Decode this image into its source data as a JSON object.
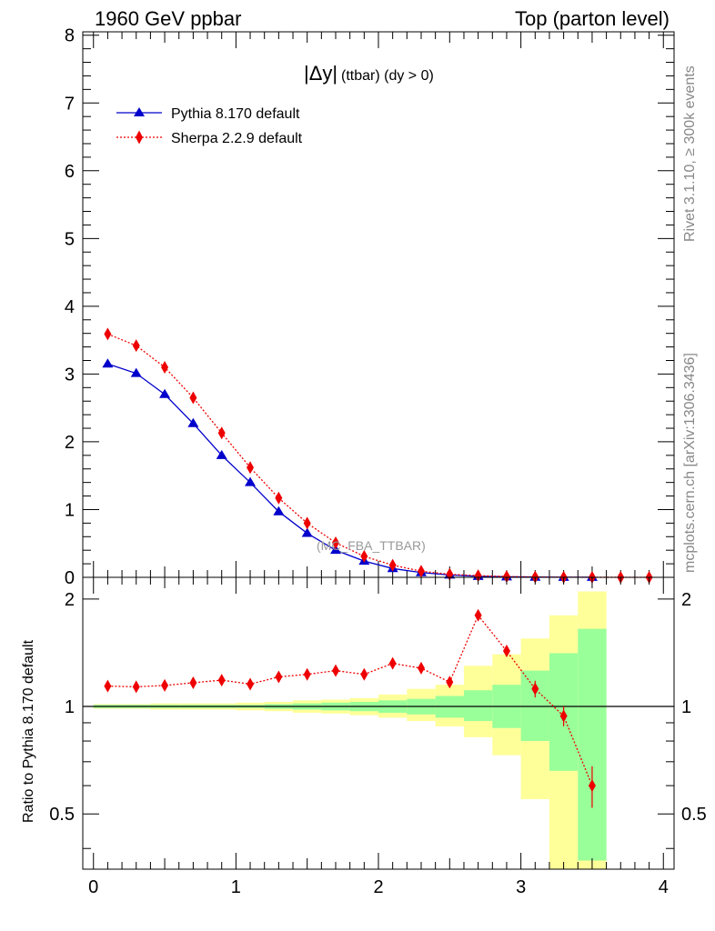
{
  "header": {
    "left": "1960 GeV ppbar",
    "right": "Top (parton level)"
  },
  "side_text": {
    "rivet": "Rivet 3.1.10, ≥ 300k events",
    "mcplots": "mcplots.cern.ch [arXiv:1306.3436]"
  },
  "main_title": {
    "symbol": "|Δy|",
    "rest": "(ttbar) (dy > 0)"
  },
  "watermark": "(MC_FBA_TTBAR)",
  "ratio_ylabel": "Ratio to Pythia 8.170 default",
  "colors": {
    "pythia": "#0000cc",
    "sherpa": "#ee0000",
    "band_inner": "#99ff99",
    "band_outer": "#ffff99"
  },
  "chart_data": [
    {
      "type": "line",
      "xlim": [
        -0.075,
        4.075
      ],
      "ylim": [
        0,
        8.05
      ],
      "yticks": [
        "0",
        "1",
        "2",
        "3",
        "4",
        "5",
        "6",
        "7",
        "8"
      ],
      "legend_position": "top-left",
      "series": [
        {
          "name": "Pythia 8.170 default",
          "marker": "triangle",
          "line": "solid",
          "x": [
            0.1,
            0.3,
            0.5,
            0.7,
            0.9,
            1.1,
            1.3,
            1.5,
            1.7,
            1.9,
            2.1,
            2.3,
            2.5,
            2.7,
            2.9,
            3.1,
            3.3,
            3.5
          ],
          "y": [
            3.15,
            3.01,
            2.7,
            2.27,
            1.8,
            1.4,
            0.97,
            0.65,
            0.4,
            0.24,
            0.13,
            0.07,
            0.035,
            0.015,
            0.008,
            0.004,
            0.002,
            0.001
          ]
        },
        {
          "name": "Sherpa 2.2.9 default",
          "marker": "diamond",
          "line": "dotted",
          "x": [
            0.1,
            0.3,
            0.5,
            0.7,
            0.9,
            1.1,
            1.3,
            1.5,
            1.7,
            1.9,
            2.1,
            2.3,
            2.5,
            2.7,
            2.9,
            3.1,
            3.3,
            3.5,
            3.7,
            3.9
          ],
          "y": [
            3.59,
            3.42,
            3.1,
            2.65,
            2.13,
            1.62,
            1.17,
            0.8,
            0.51,
            0.31,
            0.18,
            0.09,
            0.045,
            0.025,
            0.012,
            0.005,
            0.002,
            0.001,
            0.0005,
            0.0002
          ]
        }
      ]
    },
    {
      "type": "line",
      "xlim": [
        -0.075,
        4.075
      ],
      "ylim": [
        0.35,
        2.3
      ],
      "xticks": [
        "0",
        "1",
        "2",
        "3",
        "4"
      ],
      "yticks": [
        "0.5",
        "1",
        "2"
      ],
      "ylabel": "Ratio to Pythia 8.170 default",
      "reference_line": 1,
      "bands": {
        "edges": [
          0.0,
          0.2,
          0.4,
          0.6,
          0.8,
          1.0,
          1.2,
          1.4,
          1.6,
          1.8,
          2.0,
          2.2,
          2.4,
          2.6,
          2.8,
          3.0,
          3.2,
          3.4,
          3.6
        ],
        "inner_low": [
          0.99,
          0.99,
          0.99,
          0.99,
          0.99,
          0.99,
          0.985,
          0.98,
          0.975,
          0.97,
          0.96,
          0.95,
          0.93,
          0.91,
          0.87,
          0.8,
          0.66,
          0.37
        ],
        "inner_high": [
          1.01,
          1.01,
          1.01,
          1.01,
          1.01,
          1.01,
          1.015,
          1.02,
          1.025,
          1.03,
          1.04,
          1.05,
          1.07,
          1.11,
          1.15,
          1.26,
          1.41,
          1.65
        ],
        "outer_low": [
          0.985,
          0.985,
          0.98,
          0.98,
          0.98,
          0.975,
          0.97,
          0.96,
          0.955,
          0.945,
          0.93,
          0.91,
          0.88,
          0.82,
          0.73,
          0.55,
          0.3,
          0.3
        ],
        "outer_high": [
          1.015,
          1.015,
          1.02,
          1.02,
          1.02,
          1.025,
          1.03,
          1.04,
          1.045,
          1.055,
          1.08,
          1.12,
          1.15,
          1.3,
          1.4,
          1.55,
          1.8,
          2.1
        ]
      },
      "series": [
        {
          "name": "Sherpa 2.2.9 default",
          "marker": "diamond",
          "line": "dotted",
          "x": [
            0.1,
            0.3,
            0.5,
            0.7,
            0.9,
            1.1,
            1.3,
            1.5,
            1.7,
            1.9,
            2.1,
            2.3,
            2.5,
            2.7,
            2.9,
            3.1,
            3.3,
            3.5
          ],
          "y": [
            1.14,
            1.135,
            1.145,
            1.165,
            1.185,
            1.155,
            1.21,
            1.23,
            1.26,
            1.23,
            1.32,
            1.28,
            1.17,
            1.8,
            1.43,
            1.12,
            0.94,
            0.6
          ],
          "err": [
            0.015,
            0.015,
            0.015,
            0.015,
            0.015,
            0.015,
            0.015,
            0.015,
            0.02,
            0.02,
            0.025,
            0.03,
            0.04,
            0.05,
            0.05,
            0.06,
            0.06,
            0.08
          ]
        }
      ]
    }
  ]
}
